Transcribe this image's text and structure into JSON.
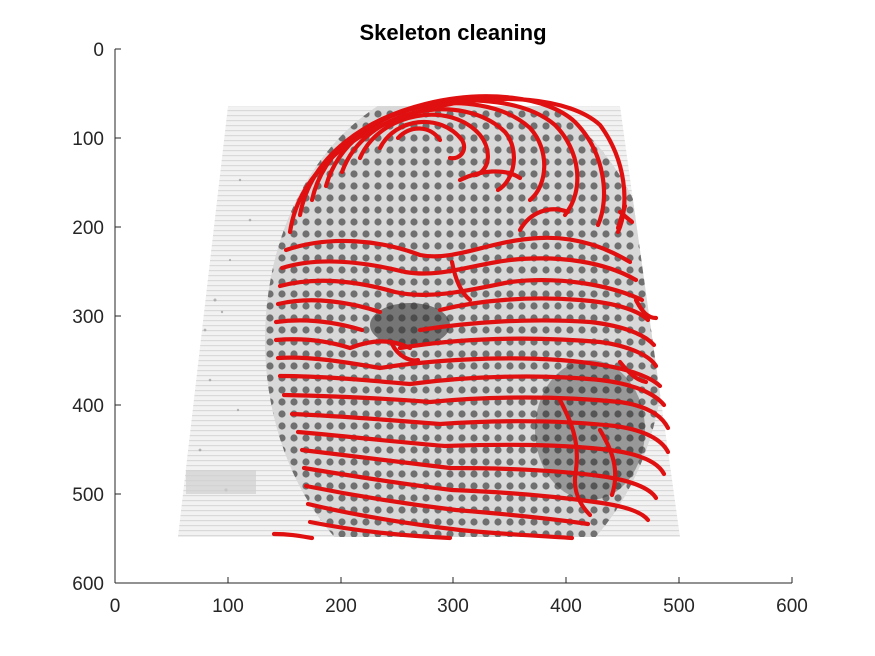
{
  "title": "Skeleton cleaning",
  "x_axis": {
    "ticks": [
      "0",
      "100",
      "200",
      "300",
      "400",
      "500",
      "600"
    ]
  },
  "y_axis": {
    "ticks": [
      "0",
      "100",
      "200",
      "300",
      "400",
      "500",
      "600"
    ]
  },
  "image": {
    "content": "fingerprint",
    "overlay": "skeleton"
  },
  "colors": {
    "skeleton": "#e01010",
    "background": "#ffffff",
    "axis": "#262626"
  }
}
